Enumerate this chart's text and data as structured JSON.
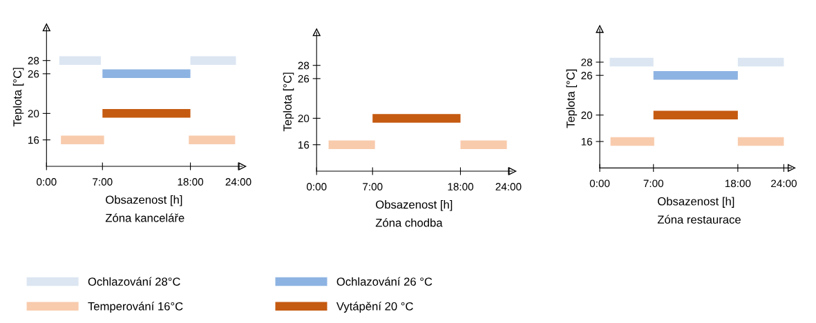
{
  "chart_data": [
    {
      "type": "line",
      "title": "Zóna kanceláře",
      "xlabel": "Obsazenost [h]",
      "ylabel": "Teplota [°C]",
      "xlim": [
        0,
        24.5
      ],
      "ylim": [
        12,
        33
      ],
      "xticks": [
        {
          "value": 0,
          "label": "0:00"
        },
        {
          "value": 7,
          "label": "7:00"
        },
        {
          "value": 18,
          "label": "18:00"
        },
        {
          "value": 24,
          "label": "24:00"
        }
      ],
      "yticks": [
        16,
        20,
        26,
        28
      ],
      "legend": "bottom",
      "marker": "none",
      "line_style": "solid",
      "series": [
        {
          "name": "Ochlazování 28°C",
          "color": "#dce6f2",
          "x": [
            1.6,
            6.8,
            12,
            18,
            23.7
          ],
          "values": [
            28,
            28,
            null,
            28,
            28
          ]
        },
        {
          "name": "Temperování 16°C",
          "color": "#f8cbad",
          "x": [
            1.8,
            7.2,
            12,
            17.8,
            23.6
          ],
          "values": [
            16,
            16,
            null,
            16,
            16
          ]
        },
        {
          "name": "Ochlazování 26 °C",
          "color": "#8db3e2",
          "x": [
            7,
            18
          ],
          "values": [
            26,
            26
          ]
        },
        {
          "name": "Vytápění 20 °C",
          "color": "#c55a11",
          "x": [
            7,
            18
          ],
          "values": [
            20,
            20
          ]
        }
      ]
    },
    {
      "type": "line",
      "title": "Zóna chodba",
      "xlabel": "Obsazenost [h]",
      "ylabel": "Teplota [°C]",
      "xlim": [
        0,
        24.5
      ],
      "ylim": [
        12,
        33
      ],
      "xticks": [
        {
          "value": 0,
          "label": "0:00"
        },
        {
          "value": 7,
          "label": "7:00"
        },
        {
          "value": 18,
          "label": "18:00"
        },
        {
          "value": 24,
          "label": "24:00"
        }
      ],
      "yticks": [
        16,
        20,
        26,
        28
      ],
      "marker": "none",
      "line_style": "solid",
      "series": [
        {
          "color": "#f8cbad",
          "x": [
            1.5,
            7.3,
            12,
            18,
            23.8
          ],
          "values": [
            16,
            16,
            null,
            16,
            16
          ]
        },
        {
          "color": "#c55a11",
          "x": [
            7,
            18
          ],
          "values": [
            20,
            20
          ]
        }
      ]
    },
    {
      "type": "line",
      "title": "Zóna restaurace",
      "xlabel": "Obsazenost [h]",
      "ylabel": "Teplota [°C]",
      "xlim": [
        0,
        25
      ],
      "ylim": [
        12,
        33
      ],
      "xticks": [
        {
          "value": 0,
          "label": "0:00"
        },
        {
          "value": 7,
          "label": "7:00"
        },
        {
          "value": 18,
          "label": "18:00"
        },
        {
          "value": 24,
          "label": "24:00"
        }
      ],
      "yticks": [
        16,
        20,
        26,
        28
      ],
      "marker": "none",
      "line_style": "solid",
      "series": [
        {
          "color": "#dce6f2",
          "x": [
            1.3,
            7,
            12,
            18,
            24
          ],
          "values": [
            28,
            28,
            null,
            28,
            28
          ]
        },
        {
          "color": "#f8cbad",
          "x": [
            1.4,
            7.1,
            12,
            18,
            24
          ],
          "values": [
            16,
            16,
            null,
            16,
            16
          ]
        },
        {
          "color": "#8db3e2",
          "x": [
            7,
            18
          ],
          "values": [
            26,
            26
          ]
        },
        {
          "color": "#c55a11",
          "x": [
            7,
            18
          ],
          "values": [
            20,
            20
          ]
        }
      ]
    }
  ]
}
